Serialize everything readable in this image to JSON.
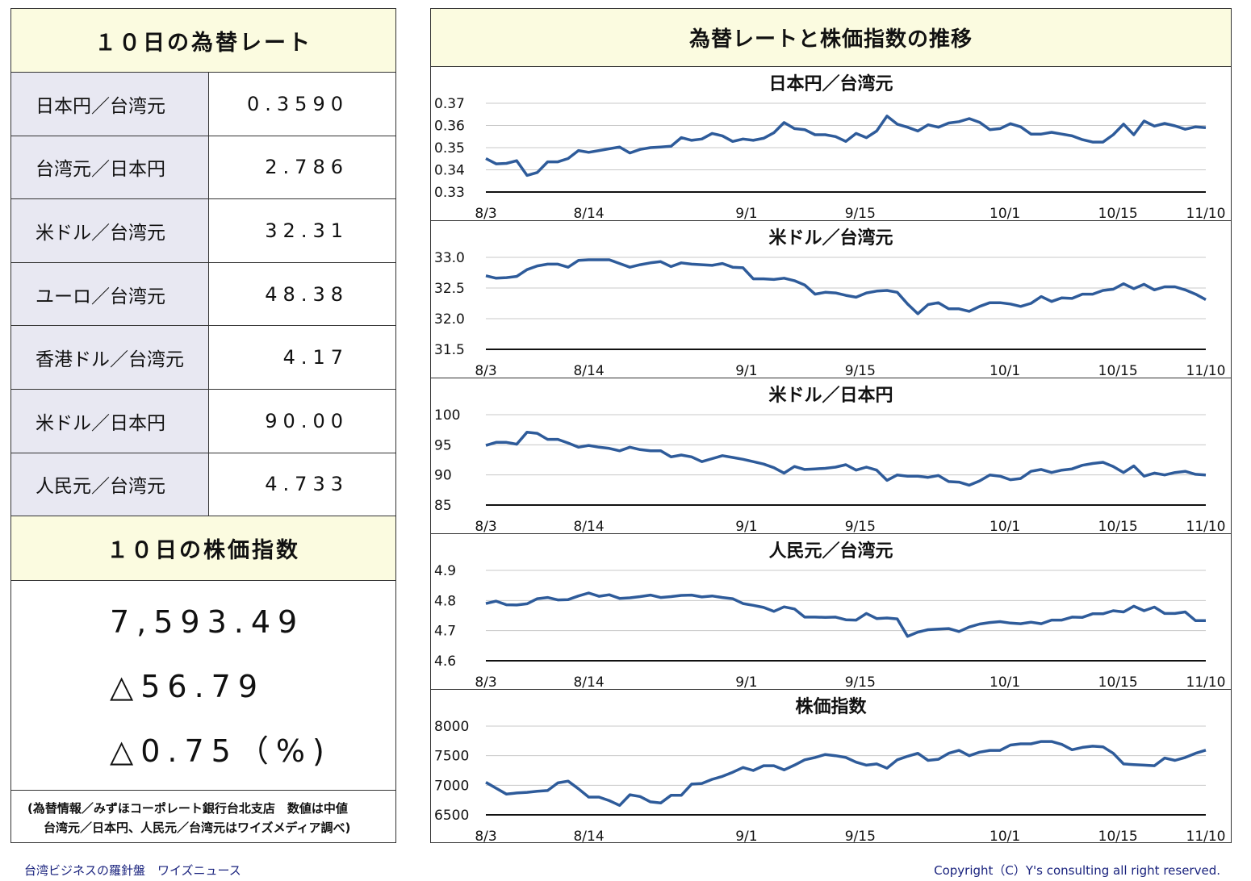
{
  "rates": {
    "title": "１０日の為替レート",
    "rows": [
      {
        "label": "日本円／台湾元",
        "value": "0.3590"
      },
      {
        "label": "台湾元／日本円",
        "value": "2.786"
      },
      {
        "label": "米ドル／台湾元",
        "value": "32.31"
      },
      {
        "label": "ユーロ／台湾元",
        "value": "48.38"
      },
      {
        "label": "香港ドル／台湾元",
        "value": "4.17"
      },
      {
        "label": "米ドル／日本円",
        "value": "90.00"
      },
      {
        "label": "人民元／台湾元",
        "value": "4.733"
      }
    ]
  },
  "index": {
    "title": "１０日の株価指数",
    "value": "7,593.49",
    "change": "△56.79",
    "change_pct": "△0.75（%)"
  },
  "source": {
    "line1": "(為替情報／みずほコーポレート銀行台北支店　数値は中値",
    "line2": "台湾元／日本円、人民元／台湾元はワイズメディア調べ)"
  },
  "charts_title": "為替レートと株価指数の推移",
  "footer": {
    "left": "台湾ビジネスの羅針盤　ワイズニュース",
    "right": "Copyright（C）Y's consulting all right reserved."
  },
  "chart_data": [
    {
      "type": "line",
      "title": "日本円／台湾元",
      "x_ticks": [
        "8/3",
        "8/14",
        "9/1",
        "9/15",
        "10/1",
        "10/15",
        "11/10"
      ],
      "y_ticks": [
        "0.33",
        "0.34",
        "0.35",
        "0.36",
        "0.37"
      ],
      "ylim": [
        0.33,
        0.37
      ],
      "line_color": "#2e5b9a",
      "values": [
        0.3451,
        0.3427,
        0.3429,
        0.3441,
        0.3375,
        0.3388,
        0.3436,
        0.3436,
        0.3451,
        0.3487,
        0.3479,
        0.3487,
        0.3495,
        0.3503,
        0.3476,
        0.3492,
        0.35,
        0.3503,
        0.3506,
        0.3545,
        0.3533,
        0.3539,
        0.3564,
        0.3553,
        0.3528,
        0.3539,
        0.3533,
        0.3542,
        0.3567,
        0.3613,
        0.3586,
        0.3581,
        0.3558,
        0.3558,
        0.355,
        0.3528,
        0.3564,
        0.3545,
        0.3575,
        0.3642,
        0.3606,
        0.3592,
        0.3575,
        0.3603,
        0.3592,
        0.3611,
        0.3617,
        0.3631,
        0.3614,
        0.3581,
        0.3586,
        0.3608,
        0.3594,
        0.3561,
        0.3561,
        0.3569,
        0.3561,
        0.3553,
        0.3536,
        0.3525,
        0.3525,
        0.3558,
        0.3606,
        0.3558,
        0.362,
        0.3597,
        0.3609,
        0.3598,
        0.3583,
        0.3594,
        0.359
      ]
    },
    {
      "type": "line",
      "title": "米ドル／台湾元",
      "x_ticks": [
        "8/3",
        "8/14",
        "9/1",
        "9/15",
        "10/1",
        "10/15",
        "11/10"
      ],
      "y_ticks": [
        "31.5",
        "32.0",
        "32.5",
        "33.0"
      ],
      "ylim": [
        31.5,
        33.0
      ],
      "line_color": "#2e5b9a",
      "values": [
        32.7,
        32.66,
        32.67,
        32.69,
        32.8,
        32.86,
        32.89,
        32.89,
        32.84,
        32.95,
        32.96,
        32.96,
        32.96,
        32.9,
        32.84,
        32.88,
        32.91,
        32.93,
        32.85,
        32.91,
        32.89,
        32.88,
        32.87,
        32.9,
        32.84,
        32.83,
        32.65,
        32.65,
        32.64,
        32.66,
        32.62,
        32.55,
        32.4,
        32.43,
        32.42,
        32.38,
        32.35,
        32.42,
        32.45,
        32.46,
        32.43,
        32.24,
        32.08,
        32.23,
        32.26,
        32.16,
        32.16,
        32.12,
        32.2,
        32.26,
        32.26,
        32.24,
        32.2,
        32.25,
        32.36,
        32.28,
        32.34,
        32.33,
        32.4,
        32.4,
        32.46,
        32.48,
        32.57,
        32.49,
        32.56,
        32.47,
        32.52,
        32.52,
        32.47,
        32.4,
        32.31
      ]
    },
    {
      "type": "line",
      "title": "米ドル／日本円",
      "x_ticks": [
        "8/3",
        "8/14",
        "9/1",
        "9/15",
        "10/1",
        "10/15",
        "11/10"
      ],
      "y_ticks": [
        "85",
        "90",
        "95",
        "100"
      ],
      "ylim": [
        85,
        100
      ],
      "line_color": "#2e5b9a",
      "values": [
        94.9,
        95.4,
        95.4,
        95.1,
        97.1,
        96.9,
        95.9,
        95.9,
        95.3,
        94.6,
        94.9,
        94.6,
        94.4,
        94.0,
        94.6,
        94.2,
        94.0,
        94.0,
        93.0,
        93.3,
        93.0,
        92.2,
        92.7,
        93.2,
        92.9,
        92.6,
        92.2,
        91.8,
        91.2,
        90.3,
        91.4,
        90.9,
        91.0,
        91.1,
        91.3,
        91.7,
        90.8,
        91.3,
        90.8,
        89.1,
        90.0,
        89.8,
        89.8,
        89.6,
        89.9,
        88.9,
        88.8,
        88.3,
        89.0,
        90.0,
        89.8,
        89.2,
        89.4,
        90.6,
        90.9,
        90.4,
        90.8,
        91.0,
        91.6,
        91.9,
        92.1,
        91.4,
        90.4,
        91.5,
        89.8,
        90.3,
        90.0,
        90.4,
        90.6,
        90.1,
        90.0
      ]
    },
    {
      "type": "line",
      "title": "人民元／台湾元",
      "x_ticks": [
        "8/3",
        "8/14",
        "9/1",
        "9/15",
        "10/1",
        "10/15",
        "11/10"
      ],
      "y_ticks": [
        "4.6",
        "4.7",
        "4.8",
        "4.9"
      ],
      "ylim": [
        4.6,
        4.9
      ],
      "line_color": "#2e5b9a",
      "values": [
        4.79,
        4.798,
        4.786,
        4.785,
        4.789,
        4.806,
        4.81,
        4.802,
        4.803,
        4.815,
        4.825,
        4.814,
        4.819,
        4.807,
        4.809,
        4.813,
        4.818,
        4.81,
        4.813,
        4.817,
        4.818,
        4.812,
        4.815,
        4.81,
        4.806,
        4.79,
        4.784,
        4.777,
        4.764,
        4.779,
        4.772,
        4.745,
        4.745,
        4.744,
        4.745,
        4.736,
        4.735,
        4.757,
        4.74,
        4.742,
        4.739,
        4.681,
        4.695,
        4.703,
        4.705,
        4.707,
        4.697,
        4.712,
        4.722,
        4.727,
        4.73,
        4.725,
        4.723,
        4.728,
        4.723,
        4.735,
        4.735,
        4.745,
        4.744,
        4.756,
        4.756,
        4.766,
        4.762,
        4.781,
        4.766,
        4.778,
        4.757,
        4.757,
        4.762,
        4.733,
        4.733
      ]
    },
    {
      "type": "line",
      "title": "株価指数",
      "x_ticks": [
        "8/3",
        "8/14",
        "9/1",
        "9/15",
        "10/1",
        "10/15",
        "11/10"
      ],
      "y_ticks": [
        "6500",
        "7000",
        "7500",
        "8000"
      ],
      "ylim": [
        6500,
        8000
      ],
      "line_color": "#2e5b9a",
      "values": [
        7050,
        6950,
        6850,
        6870,
        6880,
        6900,
        6910,
        7040,
        7070,
        6940,
        6800,
        6800,
        6740,
        6660,
        6840,
        6810,
        6720,
        6700,
        6830,
        6830,
        7020,
        7030,
        7100,
        7150,
        7220,
        7300,
        7250,
        7330,
        7330,
        7260,
        7340,
        7430,
        7470,
        7520,
        7500,
        7470,
        7390,
        7340,
        7360,
        7290,
        7430,
        7490,
        7540,
        7420,
        7440,
        7540,
        7590,
        7500,
        7560,
        7590,
        7590,
        7680,
        7700,
        7700,
        7740,
        7740,
        7690,
        7600,
        7640,
        7660,
        7650,
        7540,
        7360,
        7350,
        7340,
        7330,
        7460,
        7420,
        7470,
        7540,
        7593
      ]
    }
  ]
}
